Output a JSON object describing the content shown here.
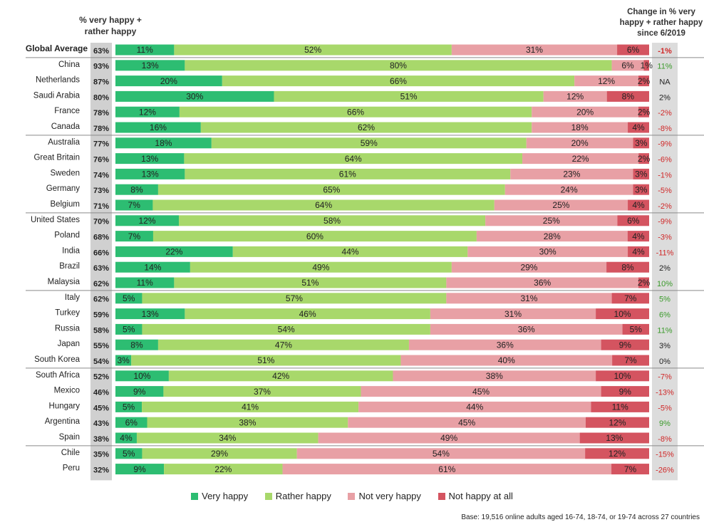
{
  "header": {
    "left_title": "% very happy + rather happy",
    "right_title": "Change in % very happy + rather happy since 6/2019"
  },
  "colors": {
    "very_happy": "#2dbd72",
    "rather_happy": "#a8d86b",
    "not_very_happy": "#e8a0a5",
    "not_happy_at_all": "#d45460",
    "total_box": "#d0d0d0",
    "change_box": "#dcdcdc",
    "positive_change": "#3a9a2a",
    "negative_change": "#d02828",
    "neutral_change": "#222222"
  },
  "legend": [
    {
      "label": "Very happy",
      "color": "#2dbd72"
    },
    {
      "label": "Rather happy",
      "color": "#a8d86b"
    },
    {
      "label": "Not very happy",
      "color": "#e8a0a5"
    },
    {
      "label": "Not happy at all",
      "color": "#d45460"
    }
  ],
  "footer": {
    "base_note": "Base: 19,516 online adults aged 16-74, 18-74, or 19-74 across 27 countries"
  },
  "chart_data": {
    "type": "bar",
    "orientation": "horizontal",
    "stacked": true,
    "xlim": [
      0,
      100
    ],
    "units": "%",
    "segments": [
      "Very happy",
      "Rather happy",
      "Not very happy",
      "Not happy at all"
    ],
    "group_separators_after": [
      "Global Average",
      "Canada",
      "Belgium",
      "Malaysia",
      "South Korea",
      "Spain"
    ],
    "rows": [
      {
        "country": "Global Average",
        "total": "63%",
        "change": "-1%",
        "values": [
          11,
          52,
          31,
          6
        ],
        "labels": [
          "11%",
          "52%",
          "31%",
          "6%"
        ]
      },
      {
        "country": "China",
        "total": "93%",
        "change": "11%",
        "values": [
          13,
          80,
          6,
          1
        ],
        "labels": [
          "13%",
          "80%",
          "6%",
          "1%"
        ]
      },
      {
        "country": "Netherlands",
        "total": "87%",
        "change": "NA",
        "values": [
          20,
          66,
          12,
          2
        ],
        "labels": [
          "20%",
          "66%",
          "12%",
          "2%"
        ]
      },
      {
        "country": "Saudi Arabia",
        "total": "80%",
        "change": "2%",
        "values": [
          30,
          51,
          12,
          8
        ],
        "labels": [
          "30%",
          "51%",
          "12%",
          "8%"
        ]
      },
      {
        "country": "France",
        "total": "78%",
        "change": "-2%",
        "values": [
          12,
          66,
          20,
          2
        ],
        "labels": [
          "12%",
          "66%",
          "20%",
          "2%"
        ]
      },
      {
        "country": "Canada",
        "total": "78%",
        "change": "-8%",
        "values": [
          16,
          62,
          18,
          4
        ],
        "labels": [
          "16%",
          "62%",
          "18%",
          "4%"
        ]
      },
      {
        "country": "Australia",
        "total": "77%",
        "change": "-9%",
        "values": [
          18,
          59,
          20,
          3
        ],
        "labels": [
          "18%",
          "59%",
          "20%",
          "3%"
        ]
      },
      {
        "country": "Great Britain",
        "total": "76%",
        "change": "-6%",
        "values": [
          13,
          64,
          22,
          2
        ],
        "labels": [
          "13%",
          "64%",
          "22%",
          "2%"
        ]
      },
      {
        "country": "Sweden",
        "total": "74%",
        "change": "-1%",
        "values": [
          13,
          61,
          23,
          3
        ],
        "labels": [
          "13%",
          "61%",
          "23%",
          "3%"
        ]
      },
      {
        "country": "Germany",
        "total": "73%",
        "change": "-5%",
        "values": [
          8,
          65,
          24,
          3
        ],
        "labels": [
          "8%",
          "65%",
          "24%",
          "3%"
        ]
      },
      {
        "country": "Belgium",
        "total": "71%",
        "change": "-2%",
        "values": [
          7,
          64,
          25,
          4
        ],
        "labels": [
          "7%",
          "64%",
          "25%",
          "4%"
        ]
      },
      {
        "country": "United States",
        "total": "70%",
        "change": "-9%",
        "values": [
          12,
          58,
          25,
          6
        ],
        "labels": [
          "12%",
          "58%",
          "25%",
          "6%"
        ]
      },
      {
        "country": "Poland",
        "total": "68%",
        "change": "-3%",
        "values": [
          7,
          60,
          28,
          4
        ],
        "labels": [
          "7%",
          "60%",
          "28%",
          "4%"
        ]
      },
      {
        "country": "India",
        "total": "66%",
        "change": "-11%",
        "values": [
          22,
          44,
          30,
          4
        ],
        "labels": [
          "22%",
          "44%",
          "30%",
          "4%"
        ]
      },
      {
        "country": "Brazil",
        "total": "63%",
        "change": "2%",
        "values": [
          14,
          49,
          29,
          8
        ],
        "labels": [
          "14%",
          "49%",
          "29%",
          "8%"
        ]
      },
      {
        "country": "Malaysia",
        "total": "62%",
        "change": "10%",
        "values": [
          11,
          51,
          36,
          2
        ],
        "labels": [
          "11%",
          "51%",
          "36%",
          "2%"
        ]
      },
      {
        "country": "Italy",
        "total": "62%",
        "change": "5%",
        "values": [
          5,
          57,
          31,
          7
        ],
        "labels": [
          "5%",
          "57%",
          "31%",
          "7%"
        ]
      },
      {
        "country": "Turkey",
        "total": "59%",
        "change": "6%",
        "values": [
          13,
          46,
          31,
          10
        ],
        "labels": [
          "13%",
          "46%",
          "31%",
          "10%"
        ]
      },
      {
        "country": "Russia",
        "total": "58%",
        "change": "11%",
        "values": [
          5,
          54,
          36,
          5
        ],
        "labels": [
          "5%",
          "54%",
          "36%",
          "5%"
        ]
      },
      {
        "country": "Japan",
        "total": "55%",
        "change": "3%",
        "values": [
          8,
          47,
          36,
          9
        ],
        "labels": [
          "8%",
          "47%",
          "36%",
          "9%"
        ]
      },
      {
        "country": "South Korea",
        "total": "54%",
        "change": "0%",
        "values": [
          3,
          51,
          40,
          7
        ],
        "labels": [
          "3%",
          "51%",
          "40%",
          "7%"
        ]
      },
      {
        "country": "South Africa",
        "total": "52%",
        "change": "-7%",
        "values": [
          10,
          42,
          38,
          10
        ],
        "labels": [
          "10%",
          "42%",
          "38%",
          "10%"
        ]
      },
      {
        "country": "Mexico",
        "total": "46%",
        "change": "-13%",
        "values": [
          9,
          37,
          45,
          9
        ],
        "labels": [
          "9%",
          "37%",
          "45%",
          "9%"
        ]
      },
      {
        "country": "Hungary",
        "total": "45%",
        "change": "-5%",
        "values": [
          5,
          41,
          44,
          11
        ],
        "labels": [
          "5%",
          "41%",
          "44%",
          "11%"
        ]
      },
      {
        "country": "Argentina",
        "total": "43%",
        "change": "9%",
        "values": [
          6,
          38,
          45,
          12
        ],
        "labels": [
          "6%",
          "38%",
          "45%",
          "12%"
        ]
      },
      {
        "country": "Spain",
        "total": "38%",
        "change": "-8%",
        "values": [
          4,
          34,
          49,
          13
        ],
        "labels": [
          "4%",
          "34%",
          "49%",
          "13%"
        ]
      },
      {
        "country": "Chile",
        "total": "35%",
        "change": "-15%",
        "values": [
          5,
          29,
          54,
          12
        ],
        "labels": [
          "5%",
          "29%",
          "54%",
          "12%"
        ]
      },
      {
        "country": "Peru",
        "total": "32%",
        "change": "-26%",
        "values": [
          9,
          22,
          61,
          7
        ],
        "labels": [
          "9%",
          "22%",
          "61%",
          "7%"
        ]
      }
    ]
  }
}
